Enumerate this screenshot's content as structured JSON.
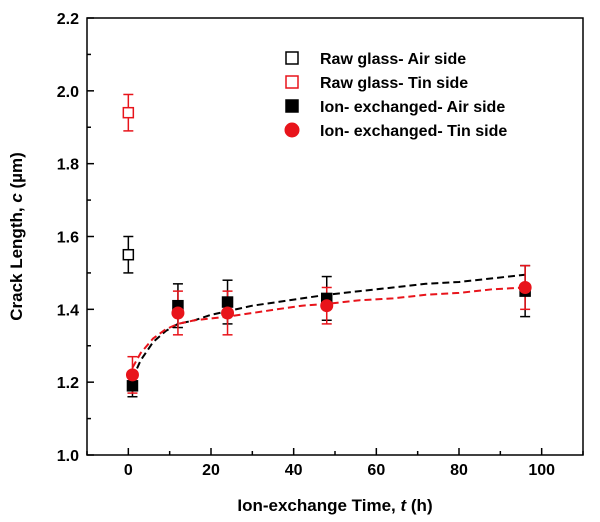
{
  "chart_data": {
    "type": "scatter",
    "xlabel": "Ion-exchange Time, t (h)",
    "ylabel": "Crack Length, c (µm)",
    "xlim": [
      -10,
      110
    ],
    "ylim": [
      1.0,
      2.2
    ],
    "xticks": [
      0,
      20,
      40,
      60,
      80,
      100
    ],
    "yticks": [
      1.0,
      1.2,
      1.4,
      1.6,
      1.8,
      2.0,
      2.2
    ],
    "grid": false,
    "legend_position": "top-right",
    "series": [
      {
        "name": "Raw glass- Air side",
        "marker": "square-open",
        "color": "#000000",
        "points": [
          {
            "x": 0,
            "y": 1.55,
            "err": 0.05
          }
        ]
      },
      {
        "name": "Raw glass- Tin side",
        "marker": "square-open",
        "color": "#e8141b",
        "points": [
          {
            "x": 0,
            "y": 1.94,
            "err": 0.05
          }
        ]
      },
      {
        "name": "Ion- exchanged- Air side",
        "marker": "square-filled",
        "color": "#000000",
        "points": [
          {
            "x": 1,
            "y": 1.19,
            "err": 0.03
          },
          {
            "x": 12,
            "y": 1.41,
            "err": 0.06
          },
          {
            "x": 24,
            "y": 1.42,
            "err": 0.06
          },
          {
            "x": 48,
            "y": 1.43,
            "err": 0.06
          },
          {
            "x": 96,
            "y": 1.45,
            "err": 0.07
          }
        ]
      },
      {
        "name": "Ion- exchanged- Tin side",
        "marker": "circle-filled",
        "color": "#e8141b",
        "points": [
          {
            "x": 1,
            "y": 1.22,
            "err": 0.05
          },
          {
            "x": 12,
            "y": 1.39,
            "err": 0.06
          },
          {
            "x": 24,
            "y": 1.39,
            "err": 0.06
          },
          {
            "x": 48,
            "y": 1.41,
            "err": 0.05
          },
          {
            "x": 96,
            "y": 1.46,
            "err": 0.06
          }
        ]
      }
    ],
    "fit_curves": [
      {
        "color": "#000000",
        "style": "dashed",
        "points": [
          [
            1,
            1.21
          ],
          [
            3,
            1.26
          ],
          [
            6,
            1.31
          ],
          [
            9,
            1.34
          ],
          [
            12,
            1.36
          ],
          [
            16,
            1.37
          ],
          [
            20,
            1.385
          ],
          [
            24,
            1.395
          ],
          [
            30,
            1.41
          ],
          [
            36,
            1.42
          ],
          [
            42,
            1.43
          ],
          [
            48,
            1.44
          ],
          [
            56,
            1.45
          ],
          [
            64,
            1.46
          ],
          [
            72,
            1.47
          ],
          [
            80,
            1.475
          ],
          [
            88,
            1.485
          ],
          [
            96,
            1.495
          ]
        ]
      },
      {
        "color": "#e8141b",
        "style": "dashed",
        "points": [
          [
            1,
            1.24
          ],
          [
            3,
            1.28
          ],
          [
            6,
            1.32
          ],
          [
            9,
            1.345
          ],
          [
            12,
            1.36
          ],
          [
            16,
            1.37
          ],
          [
            20,
            1.375
          ],
          [
            24,
            1.38
          ],
          [
            30,
            1.39
          ],
          [
            36,
            1.4
          ],
          [
            42,
            1.41
          ],
          [
            48,
            1.415
          ],
          [
            56,
            1.425
          ],
          [
            64,
            1.43
          ],
          [
            72,
            1.44
          ],
          [
            80,
            1.445
          ],
          [
            88,
            1.455
          ],
          [
            96,
            1.46
          ]
        ]
      }
    ]
  }
}
